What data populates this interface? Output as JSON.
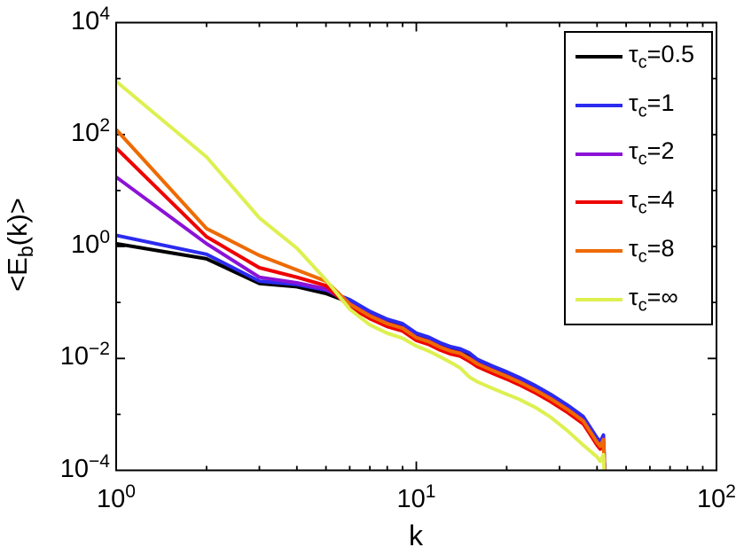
{
  "figure": {
    "xlabel": "k",
    "ylabel": {
      "pre": "<E",
      "sub": "b",
      "post": "(k)>"
    }
  },
  "chart_data": {
    "type": "line",
    "title": "",
    "xlabel": "k",
    "ylabel": "<E_b(k)>",
    "x_scale": "log",
    "y_scale": "log",
    "xlim": [
      1,
      100
    ],
    "ylim": [
      0.0001,
      10000
    ],
    "grid": false,
    "legend_position": "top-right",
    "x_ticks": [
      {
        "label_base": "10",
        "label_exp": "0",
        "value": 1
      },
      {
        "label_base": "10",
        "label_exp": "1",
        "value": 10
      },
      {
        "label_base": "10",
        "label_exp": "2",
        "value": 100
      }
    ],
    "x_minor_ticks": [
      2,
      3,
      4,
      5,
      6,
      7,
      8,
      9,
      20,
      30,
      40,
      50,
      60,
      70,
      80,
      90
    ],
    "y_ticks": [
      {
        "label_base": "10",
        "label_exp": "4",
        "exp_value": 4
      },
      {
        "label_base": "10",
        "label_exp": "2",
        "exp_value": 2
      },
      {
        "label_base": "10",
        "label_exp": "0",
        "exp_value": 0
      },
      {
        "label_base": "10",
        "label_exp": "−2",
        "exp_value": -2
      },
      {
        "label_base": "10",
        "label_exp": "−4",
        "exp_value": -4
      }
    ],
    "y_minor_tick_exponents": [
      3,
      1,
      -1,
      -3
    ],
    "k": [
      1,
      2,
      3,
      4,
      5,
      6,
      7,
      8,
      9,
      10,
      11,
      12,
      13,
      14,
      15,
      16,
      18,
      20,
      22,
      25,
      28,
      32,
      36,
      40,
      41,
      42,
      42.6
    ],
    "series": [
      {
        "id": "tau-0.5",
        "name": "τc=0.5",
        "legend": {
          "tau": "τ",
          "sub": "c",
          "value": "=0.5"
        },
        "color": "#000000",
        "log10_E_values": [
          0.05,
          -0.22,
          -0.66,
          -0.72,
          -0.84,
          -1.0,
          -1.21,
          -1.35,
          -1.43,
          -1.6,
          -1.67,
          -1.77,
          -1.84,
          -1.88,
          -1.95,
          -2.07,
          -2.19,
          -2.29,
          -2.39,
          -2.54,
          -2.69,
          -2.89,
          -3.09,
          -3.47,
          -3.54,
          -3.42,
          -4.3
        ]
      },
      {
        "id": "tau-1",
        "name": "τc=1",
        "legend": {
          "tau": "τ",
          "sub": "c",
          "value": "=1"
        },
        "color": "#2B2BF0",
        "log10_E_values": [
          0.2,
          -0.14,
          -0.62,
          -0.68,
          -0.78,
          -0.95,
          -1.16,
          -1.3,
          -1.38,
          -1.55,
          -1.62,
          -1.72,
          -1.79,
          -1.83,
          -1.9,
          -2.02,
          -2.14,
          -2.24,
          -2.34,
          -2.49,
          -2.64,
          -2.84,
          -3.04,
          -3.42,
          -3.49,
          -3.37,
          -4.25
        ]
      },
      {
        "id": "tau-2",
        "name": "τc=2",
        "legend": {
          "tau": "τ",
          "sub": "c",
          "value": "=2"
        },
        "color": "#8B12D6",
        "log10_E_values": [
          1.24,
          0.05,
          -0.55,
          -0.65,
          -0.76,
          -1.02,
          -1.23,
          -1.37,
          -1.45,
          -1.62,
          -1.69,
          -1.79,
          -1.86,
          -1.9,
          -1.99,
          -2.09,
          -2.21,
          -2.31,
          -2.41,
          -2.56,
          -2.71,
          -2.91,
          -3.11,
          -3.49,
          -3.56,
          -3.44,
          -4.32
        ]
      },
      {
        "id": "tau-4",
        "name": "τc=4",
        "legend": {
          "tau": "τ",
          "sub": "c",
          "value": "=4"
        },
        "color": "#EE0000",
        "log10_E_values": [
          1.76,
          0.175,
          -0.38,
          -0.55,
          -0.7,
          -1.08,
          -1.29,
          -1.43,
          -1.51,
          -1.68,
          -1.75,
          -1.85,
          -1.92,
          -1.96,
          -2.05,
          -2.15,
          -2.27,
          -2.37,
          -2.47,
          -2.62,
          -2.77,
          -2.97,
          -3.17,
          -3.55,
          -3.62,
          -3.5,
          -4.38
        ]
      },
      {
        "id": "tau-8",
        "name": "τc=8",
        "legend": {
          "tau": "τ",
          "sub": "c",
          "value": "=8"
        },
        "color": "#EE6A00",
        "log10_E_values": [
          2.09,
          0.32,
          -0.16,
          -0.42,
          -0.62,
          -1.03,
          -1.24,
          -1.38,
          -1.46,
          -1.63,
          -1.7,
          -1.8,
          -1.87,
          -1.91,
          -2.0,
          -2.1,
          -2.22,
          -2.32,
          -2.42,
          -2.57,
          -2.72,
          -2.92,
          -3.12,
          -3.5,
          -3.57,
          -3.45,
          -4.33
        ]
      },
      {
        "id": "tau-inf",
        "name": "τc=∞",
        "legend": {
          "tau": "τ",
          "sub": "c",
          "value": "=∞"
        },
        "color": "#DDF050",
        "log10_E_values": [
          2.95,
          1.6,
          0.51,
          -0.03,
          -0.6,
          -1.12,
          -1.4,
          -1.55,
          -1.64,
          -1.78,
          -1.87,
          -1.97,
          -2.07,
          -2.17,
          -2.33,
          -2.42,
          -2.54,
          -2.64,
          -2.73,
          -2.88,
          -3.05,
          -3.3,
          -3.55,
          -3.76,
          -3.84,
          -3.72,
          -4.4
        ]
      }
    ]
  }
}
